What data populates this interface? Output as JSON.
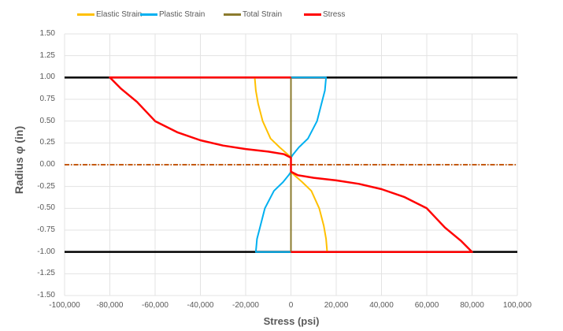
{
  "chart_data": {
    "type": "line",
    "title": "",
    "xlabel": "Stress (psi)",
    "ylabel": "Radius φ (in)",
    "xlim": [
      -100000,
      100000
    ],
    "ylim": [
      -1.5,
      1.5
    ],
    "grid": true,
    "legend_position": "top",
    "x_ticks": [
      "-100,000",
      "-80,000",
      "-60,000",
      "-40,000",
      "-20,000",
      "0",
      "20,000",
      "40,000",
      "60,000",
      "80,000",
      "100,000"
    ],
    "y_ticks": [
      "1.50",
      "1.25",
      "1.00",
      "0.75",
      "0.50",
      "0.25",
      "0.00",
      "-0.25",
      "-0.50",
      "-0.75",
      "-1.00",
      "-1.25",
      "-1.50"
    ],
    "reference_lines": [
      {
        "name": "Outer surface top",
        "y": 1.0,
        "color": "#000000",
        "style": "solid"
      },
      {
        "name": "Outer surface bottom",
        "y": -1.0,
        "color": "#000000",
        "style": "solid"
      },
      {
        "name": "Neutral axis",
        "y": 0.0,
        "color": "#C55A11",
        "style": "dash-dot"
      }
    ],
    "series": [
      {
        "name": "Elastic Strain",
        "color": "#FFC000",
        "points": [
          [
            -16000,
            1.0
          ],
          [
            -15500,
            0.85
          ],
          [
            -14500,
            0.7
          ],
          [
            -12500,
            0.5
          ],
          [
            -9000,
            0.3
          ],
          [
            -5000,
            0.2
          ],
          [
            -1500,
            0.12
          ],
          [
            0,
            0.08
          ],
          [
            0,
            -0.08
          ],
          [
            1500,
            -0.12
          ],
          [
            5000,
            -0.2
          ],
          [
            9000,
            -0.3
          ],
          [
            12500,
            -0.5
          ],
          [
            14500,
            -0.7
          ],
          [
            15500,
            -0.85
          ],
          [
            16000,
            -1.0
          ]
        ]
      },
      {
        "name": "Plastic Strain",
        "color": "#00B0F0",
        "points": [
          [
            0,
            1.0
          ],
          [
            15500,
            1.0
          ],
          [
            15000,
            0.85
          ],
          [
            13500,
            0.7
          ],
          [
            11500,
            0.5
          ],
          [
            7500,
            0.3
          ],
          [
            3500,
            0.2
          ],
          [
            1000,
            0.12
          ],
          [
            0,
            0.08
          ],
          [
            0,
            -0.08
          ],
          [
            -1000,
            -0.12
          ],
          [
            -3500,
            -0.2
          ],
          [
            -7500,
            -0.3
          ],
          [
            -11500,
            -0.5
          ],
          [
            -13500,
            -0.7
          ],
          [
            -15000,
            -0.85
          ],
          [
            -15500,
            -1.0
          ],
          [
            0,
            -1.0
          ]
        ]
      },
      {
        "name": "Total Strain",
        "color": "#8B7B2E",
        "points": [
          [
            0,
            1.0
          ],
          [
            0,
            -1.0
          ]
        ]
      },
      {
        "name": "Stress",
        "color": "#FF0000",
        "points": [
          [
            0,
            1.0
          ],
          [
            -80000,
            1.0
          ],
          [
            -75000,
            0.87
          ],
          [
            -68000,
            0.72
          ],
          [
            -60000,
            0.5
          ],
          [
            -50000,
            0.37
          ],
          [
            -40000,
            0.28
          ],
          [
            -30000,
            0.22
          ],
          [
            -20000,
            0.18
          ],
          [
            -10000,
            0.15
          ],
          [
            -3000,
            0.12
          ],
          [
            0,
            0.08
          ],
          [
            0,
            -0.08
          ],
          [
            3000,
            -0.12
          ],
          [
            10000,
            -0.15
          ],
          [
            20000,
            -0.18
          ],
          [
            30000,
            -0.22
          ],
          [
            40000,
            -0.28
          ],
          [
            50000,
            -0.37
          ],
          [
            60000,
            -0.5
          ],
          [
            68000,
            -0.72
          ],
          [
            75000,
            -0.87
          ],
          [
            80000,
            -1.0
          ],
          [
            0,
            -1.0
          ]
        ]
      }
    ]
  },
  "legend": {
    "items": [
      {
        "label": "Elastic Strain",
        "color": "#FFC000"
      },
      {
        "label": "Plastic Strain",
        "color": "#00B0F0"
      },
      {
        "label": "Total Strain",
        "color": "#8B7B2E"
      },
      {
        "label": "Stress",
        "color": "#FF0000"
      }
    ]
  },
  "axes": {
    "x_title": "Stress (psi)",
    "y_title": "Radius φ (in)"
  }
}
